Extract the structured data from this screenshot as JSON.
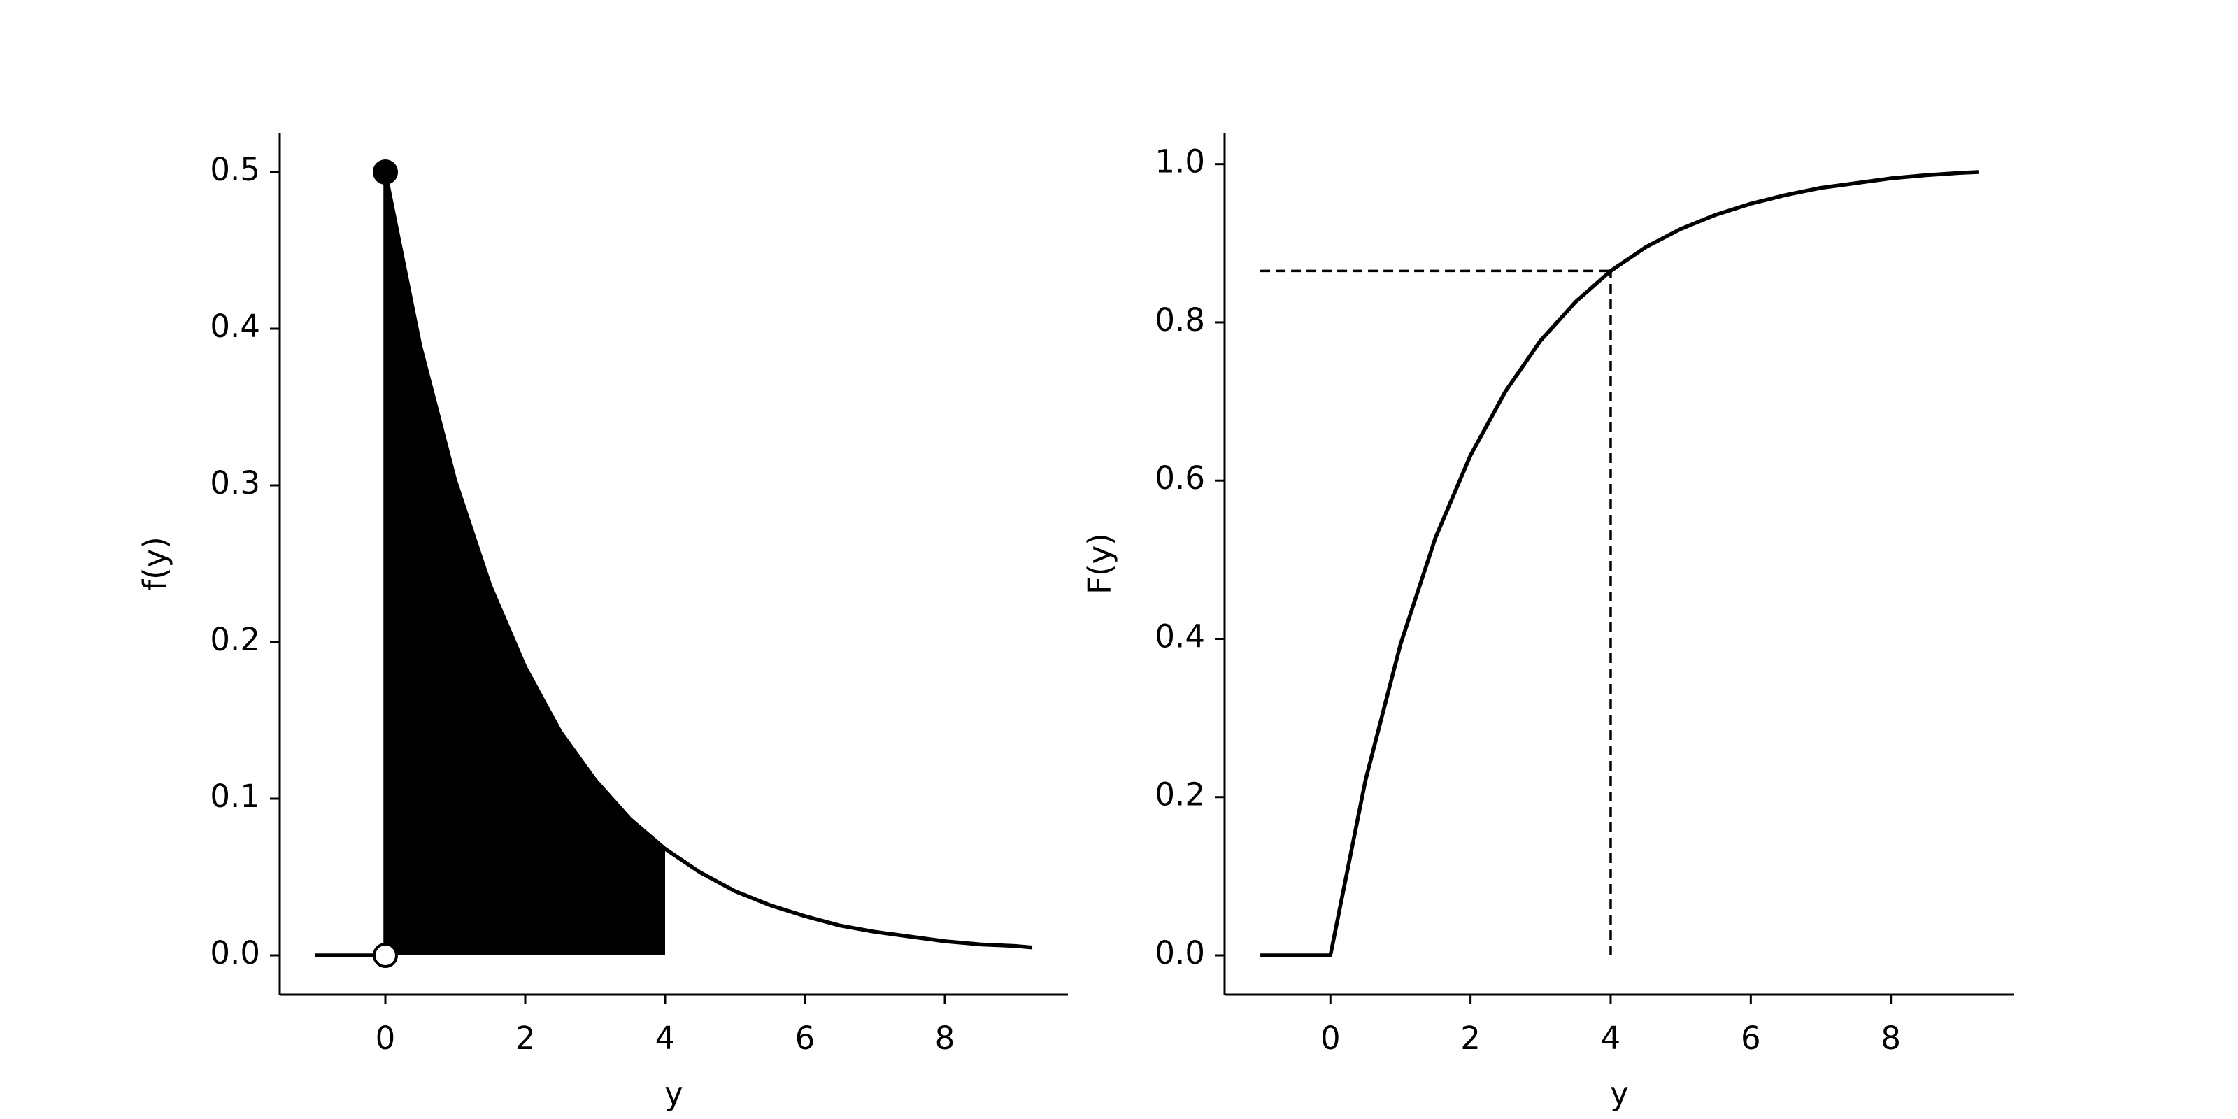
{
  "chart_data": [
    {
      "type": "line",
      "xlabel": "y",
      "ylabel": "f(y)",
      "x": [
        -1,
        0,
        0,
        0.5,
        1,
        1.5,
        2,
        2.5,
        3,
        3.5,
        4,
        4.5,
        5,
        5.5,
        6,
        6.5,
        7,
        7.5,
        8,
        8.5,
        9,
        9.25
      ],
      "values": [
        0,
        0,
        0.5,
        0.389,
        0.303,
        0.236,
        0.184,
        0.143,
        0.112,
        0.087,
        0.068,
        0.053,
        0.041,
        0.032,
        0.025,
        0.019,
        0.015,
        0.012,
        0.009,
        0.007,
        0.006,
        0.005
      ],
      "color": "#000000",
      "fill_between": [
        0,
        4
      ],
      "points": [
        {
          "x": 0,
          "y": 0.5,
          "filled": true
        },
        {
          "x": 0,
          "y": 0,
          "filled": false
        }
      ],
      "xlim": [
        -1.51,
        9.76
      ],
      "ylim": [
        -0.025,
        0.525
      ],
      "xticks": [
        0,
        2,
        4,
        6,
        8
      ],
      "yticks": [
        {
          "value": 0,
          "label": "0.0"
        },
        {
          "value": 0.1,
          "label": "0.1"
        },
        {
          "value": 0.2,
          "label": "0.2"
        },
        {
          "value": 0.3,
          "label": "0.3"
        },
        {
          "value": 0.4,
          "label": "0.4"
        },
        {
          "value": 0.5,
          "label": "0.5"
        }
      ]
    },
    {
      "type": "line",
      "xlabel": "y",
      "ylabel": "F(y)",
      "x": [
        -1,
        0,
        0.5,
        1,
        1.5,
        2,
        2.5,
        3,
        3.5,
        4,
        4.5,
        5,
        5.5,
        6,
        6.5,
        7,
        7.5,
        8,
        8.5,
        9,
        9.25
      ],
      "values": [
        0,
        0,
        0.221,
        0.393,
        0.528,
        0.632,
        0.713,
        0.777,
        0.826,
        0.865,
        0.895,
        0.918,
        0.936,
        0.95,
        0.961,
        0.97,
        0.976,
        0.982,
        0.986,
        0.989,
        0.99
      ],
      "color": "#000000",
      "reference_lines": [
        {
          "x": [
            -1,
            4
          ],
          "y": [
            0.865,
            0.865
          ]
        },
        {
          "x": [
            4,
            4
          ],
          "y": [
            0,
            0.865
          ]
        }
      ],
      "xlim": [
        -1.51,
        9.76
      ],
      "ylim": [
        -0.0495,
        1.0395
      ],
      "xticks": [
        0,
        2,
        4,
        6,
        8
      ],
      "yticks": [
        {
          "value": 0,
          "label": "0.0"
        },
        {
          "value": 0.2,
          "label": "0.2"
        },
        {
          "value": 0.4,
          "label": "0.4"
        },
        {
          "value": 0.6,
          "label": "0.6"
        },
        {
          "value": 0.8,
          "label": "0.8"
        },
        {
          "value": 1,
          "label": "1.0"
        }
      ]
    }
  ]
}
